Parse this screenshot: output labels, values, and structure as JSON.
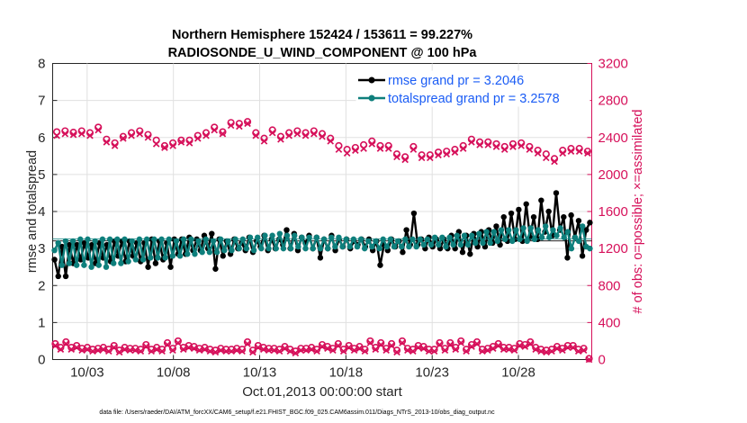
{
  "chart_data": {
    "type": "line",
    "title_line1": "Northern Hemisphere 152424 / 153611 = 99.227%",
    "title_line2": "RADIOSONDE_U_WIND_COMPONENT @ 100 hPa",
    "xlabel": "Oct.01,2013 00:00:00 start",
    "ylabel_left": "rmse and totalspread",
    "ylabel_right": "# of obs: o=possible; ×=assimilated",
    "footnote": "data file: /Users/raeder/DAI/ATM_forcXX/CAM6_setup/f.e21.FHIST_BGC.f09_025.CAM6assim.011/Diags_NTrS_2013-10/obs_diag_output.nc",
    "xlim": [
      1.0,
      32.25
    ],
    "ylim_left": [
      0,
      8
    ],
    "ylim_right": [
      0,
      3200
    ],
    "left_ticks": [
      "0",
      "1",
      "2",
      "3",
      "4",
      "5",
      "6",
      "7",
      "8"
    ],
    "right_ticks": [
      "0",
      "400",
      "800",
      "1200",
      "1600",
      "2000",
      "2400",
      "2800",
      "3200"
    ],
    "x_tick_positions": [
      3,
      8,
      13,
      18,
      23,
      28
    ],
    "x_tick_labels": [
      "10/03",
      "10/08",
      "10/13",
      "10/18",
      "10/23",
      "10/28"
    ],
    "series": [
      {
        "name": "rmse",
        "legend": "rmse grand pr = 3.2046",
        "color": "#000000",
        "grand": 3.2046,
        "values": [
          2.7,
          2.25,
          3.05,
          2.25,
          3.1,
          2.6,
          3.1,
          2.7,
          3.15,
          2.75,
          3.1,
          2.6,
          3.15,
          2.75,
          3.1,
          2.65,
          3.2,
          2.8,
          3.2,
          2.65,
          3.2,
          2.8,
          3.15,
          2.65,
          3.15,
          2.5,
          3.25,
          2.6,
          3.2,
          2.7,
          3.15,
          2.5,
          3.25,
          2.85,
          3.25,
          2.85,
          3.3,
          2.95,
          3.25,
          2.95,
          3.35,
          3.0,
          3.4,
          2.45,
          3.25,
          2.8,
          3.2,
          2.85,
          3.25,
          3.0,
          3.15,
          2.95,
          3.3,
          2.9,
          3.2,
          3.05,
          3.35,
          2.95,
          3.25,
          3.0,
          3.25,
          3.1,
          3.5,
          3.0,
          3.4,
          2.95,
          3.3,
          3.15,
          3.35,
          3.0,
          3.3,
          2.75,
          3.25,
          3.0,
          3.35,
          2.95,
          3.25,
          3.05,
          3.25,
          3.0,
          3.2,
          3.1,
          3.25,
          3.05,
          3.25,
          2.95,
          3.2,
          2.55,
          3.1,
          2.95,
          3.25,
          3.05,
          3.2,
          2.9,
          3.5,
          3.1,
          3.95,
          3.1,
          3.25,
          3.0,
          3.3,
          3.05,
          3.25,
          3.0,
          3.25,
          3.0,
          3.35,
          3.0,
          3.45,
          2.9,
          3.35,
          2.85,
          3.4,
          3.05,
          3.45,
          3.05,
          3.5,
          3.15,
          3.6,
          3.1,
          3.85,
          3.2,
          3.95,
          3.25,
          4.05,
          3.2,
          4.2,
          3.3,
          3.85,
          3.25,
          4.3,
          3.45,
          4.0,
          3.35,
          4.5,
          3.5,
          3.85,
          2.75,
          3.9,
          3.3,
          3.75,
          2.8,
          3.5,
          3.7
        ]
      },
      {
        "name": "totalspread",
        "legend": "totalspread grand pr = 3.2578",
        "color": "#0e7f7c",
        "grand": 3.2578,
        "values": [
          2.95,
          3.15,
          2.55,
          3.2,
          2.6,
          3.2,
          2.55,
          3.25,
          2.55,
          3.25,
          2.5,
          3.2,
          2.55,
          3.25,
          2.5,
          3.25,
          2.6,
          3.25,
          2.6,
          3.25,
          2.65,
          3.2,
          2.7,
          3.25,
          2.7,
          3.25,
          2.75,
          3.25,
          2.75,
          3.25,
          2.75,
          3.25,
          2.8,
          3.2,
          2.8,
          3.25,
          2.85,
          3.25,
          2.85,
          3.2,
          2.9,
          3.25,
          2.9,
          3.2,
          2.9,
          3.25,
          2.95,
          3.2,
          2.95,
          3.25,
          3.0,
          3.25,
          3.0,
          3.3,
          2.95,
          3.3,
          3.0,
          3.35,
          3.0,
          3.35,
          3.0,
          3.4,
          3.0,
          3.35,
          3.0,
          3.35,
          3.05,
          3.3,
          3.0,
          3.3,
          3.0,
          3.3,
          3.0,
          3.25,
          3.0,
          3.3,
          3.05,
          3.3,
          3.05,
          3.25,
          3.05,
          3.25,
          3.05,
          3.25,
          3.0,
          3.2,
          3.05,
          3.2,
          3.0,
          3.25,
          3.05,
          3.25,
          3.05,
          3.2,
          3.05,
          3.25,
          3.05,
          3.25,
          3.05,
          3.25,
          3.1,
          3.25,
          3.1,
          3.3,
          3.1,
          3.3,
          3.05,
          3.3,
          3.1,
          3.35,
          3.1,
          3.35,
          3.1,
          3.35,
          3.15,
          3.4,
          3.15,
          3.45,
          3.15,
          3.45,
          3.2,
          3.5,
          3.25,
          3.5,
          3.2,
          3.5,
          3.25,
          3.55,
          3.2,
          3.55,
          3.25,
          3.5,
          3.3,
          3.6,
          3.3,
          3.5,
          3.35,
          3.55,
          3.3,
          3.45,
          3.0,
          3.3,
          3.2,
          3.6,
          3.05,
          3.0
        ]
      }
    ],
    "obs_possible_upper": [
      2460,
      2470,
      2455,
      2470,
      2450,
      2510,
      2380,
      2340,
      2410,
      2450,
      2470,
      2430,
      2370,
      2310,
      2340,
      2370,
      2370,
      2420,
      2450,
      2510,
      2460,
      2560,
      2550,
      2570,
      2450,
      2390,
      2480,
      2410,
      2450,
      2470,
      2450,
      2470,
      2440,
      2390,
      2310,
      2270,
      2290,
      2320,
      2360,
      2310,
      2310,
      2220,
      2190,
      2300,
      2210,
      2210,
      2240,
      2250,
      2270,
      2310,
      2380,
      2350,
      2350,
      2330,
      2300,
      2330,
      2340,
      2300,
      2260,
      2220,
      2170,
      2260,
      2280,
      2280,
      2250
    ],
    "obs_assimilated_upper": [
      2420,
      2440,
      2430,
      2440,
      2420,
      2480,
      2350,
      2310,
      2390,
      2420,
      2440,
      2400,
      2330,
      2290,
      2310,
      2350,
      2340,
      2390,
      2420,
      2480,
      2440,
      2530,
      2520,
      2550,
      2420,
      2360,
      2450,
      2380,
      2420,
      2440,
      2420,
      2440,
      2410,
      2360,
      2270,
      2230,
      2260,
      2280,
      2330,
      2280,
      2280,
      2190,
      2160,
      2270,
      2180,
      2180,
      2210,
      2220,
      2240,
      2280,
      2350,
      2320,
      2320,
      2300,
      2270,
      2300,
      2310,
      2270,
      2230,
      2180,
      2140,
      2230,
      2250,
      2250,
      2230
    ],
    "obs_possible_lower": [
      170,
      130,
      190,
      130,
      150,
      120,
      130,
      110,
      120,
      130,
      110,
      150,
      100,
      130,
      120,
      120,
      110,
      160,
      110,
      130,
      110,
      180,
      120,
      200,
      130,
      150,
      140,
      120,
      130,
      110,
      100,
      120,
      110,
      110,
      120,
      110,
      190,
      100,
      150,
      130,
      120,
      120,
      110,
      140,
      110,
      90,
      120,
      120,
      130,
      110,
      160,
      140,
      120,
      170,
      110,
      150,
      120,
      140,
      110,
      200,
      130,
      180,
      120,
      170,
      100,
      200,
      120,
      110,
      150,
      140,
      110,
      110,
      180,
      120,
      180,
      130,
      200,
      110,
      160,
      190,
      110,
      120,
      140,
      170,
      130,
      130,
      120,
      170,
      160,
      190,
      130,
      110,
      100,
      110,
      140,
      120,
      150,
      150,
      110,
      120,
      10
    ],
    "obs_assimilated_lower": [
      150,
      110,
      170,
      110,
      130,
      100,
      110,
      90,
      100,
      110,
      90,
      130,
      80,
      110,
      100,
      100,
      90,
      140,
      90,
      110,
      90,
      160,
      100,
      180,
      110,
      130,
      120,
      100,
      110,
      90,
      80,
      100,
      90,
      90,
      100,
      90,
      170,
      80,
      130,
      110,
      100,
      100,
      90,
      120,
      90,
      70,
      100,
      100,
      110,
      90,
      140,
      120,
      100,
      150,
      90,
      130,
      100,
      120,
      90,
      180,
      110,
      160,
      100,
      150,
      80,
      180,
      100,
      90,
      130,
      120,
      90,
      90,
      160,
      100,
      160,
      110,
      180,
      90,
      140,
      170,
      90,
      100,
      120,
      150,
      110,
      110,
      100,
      150,
      140,
      170,
      110,
      90,
      80,
      90,
      120,
      100,
      130,
      130,
      90,
      100,
      0
    ]
  },
  "colors": {
    "obs": "#d6105a",
    "rmse": "#000000",
    "spread": "#0e7f7c",
    "legend_text": "#1a5cf5"
  }
}
